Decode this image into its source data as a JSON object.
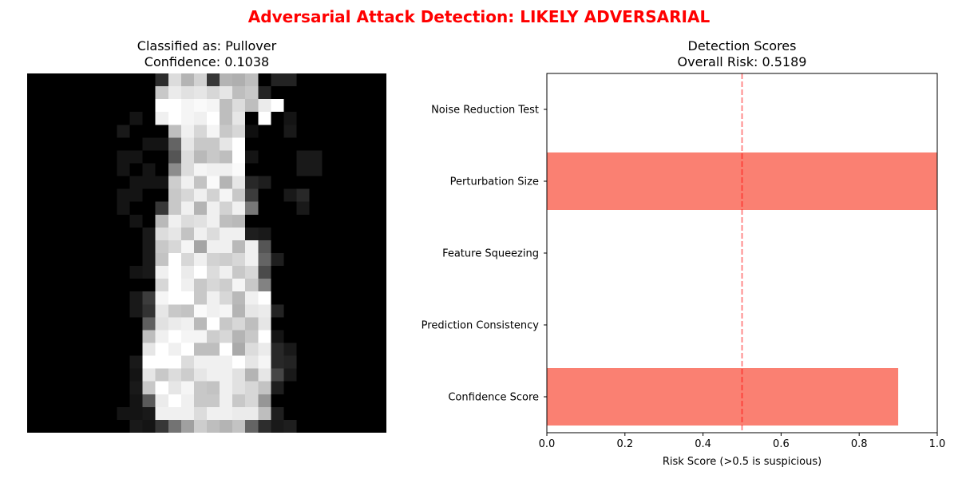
{
  "figure": {
    "suptitle": "Adversarial Attack Detection: LIKELY ADVERSARIAL",
    "suptitle_color": "#ff0000"
  },
  "image_panel": {
    "title_line1": "Classified as: Pullover",
    "title_line2": "Confidence: 0.1038",
    "colormap": "gray",
    "pixel_grid_size": [
      28,
      28
    ],
    "pixels": [
      [
        0,
        0,
        0,
        0,
        0,
        0,
        0,
        0,
        0,
        0,
        45,
        220,
        180,
        210,
        55,
        180,
        175,
        190,
        0,
        35,
        35,
        0,
        0,
        0,
        0,
        0,
        0,
        0
      ],
      [
        0,
        0,
        0,
        0,
        0,
        0,
        0,
        0,
        0,
        0,
        200,
        235,
        225,
        230,
        215,
        230,
        190,
        200,
        35,
        0,
        0,
        0,
        0,
        0,
        0,
        0,
        0,
        0
      ],
      [
        0,
        0,
        0,
        0,
        0,
        0,
        0,
        0,
        0,
        0,
        255,
        255,
        245,
        250,
        245,
        190,
        220,
        190,
        235,
        255,
        0,
        0,
        0,
        0,
        0,
        0,
        0,
        0
      ],
      [
        0,
        0,
        0,
        0,
        0,
        0,
        0,
        0,
        20,
        0,
        240,
        255,
        245,
        240,
        255,
        190,
        230,
        0,
        255,
        0,
        20,
        0,
        0,
        0,
        0,
        0,
        0,
        0
      ],
      [
        0,
        0,
        0,
        0,
        0,
        0,
        0,
        25,
        0,
        0,
        0,
        190,
        240,
        215,
        245,
        200,
        215,
        15,
        0,
        0,
        25,
        0,
        0,
        0,
        0,
        0,
        0,
        0
      ],
      [
        0,
        0,
        0,
        0,
        0,
        0,
        0,
        0,
        0,
        20,
        20,
        100,
        230,
        200,
        200,
        230,
        255,
        0,
        0,
        0,
        0,
        0,
        0,
        0,
        0,
        0,
        0,
        0
      ],
      [
        0,
        0,
        0,
        0,
        0,
        0,
        0,
        20,
        20,
        0,
        0,
        85,
        220,
        185,
        200,
        190,
        255,
        20,
        0,
        0,
        0,
        25,
        25,
        0,
        0,
        0,
        0,
        0
      ],
      [
        0,
        0,
        0,
        0,
        0,
        0,
        0,
        20,
        0,
        20,
        0,
        140,
        220,
        245,
        240,
        240,
        250,
        0,
        0,
        0,
        0,
        25,
        25,
        0,
        0,
        0,
        0,
        0
      ],
      [
        0,
        0,
        0,
        0,
        0,
        0,
        0,
        0,
        20,
        20,
        20,
        205,
        240,
        195,
        250,
        180,
        230,
        40,
        30,
        0,
        0,
        0,
        0,
        0,
        0,
        0,
        0,
        0
      ],
      [
        0,
        0,
        0,
        0,
        0,
        0,
        0,
        20,
        20,
        0,
        0,
        200,
        215,
        240,
        210,
        245,
        200,
        60,
        0,
        0,
        25,
        40,
        0,
        0,
        0,
        0,
        0,
        0
      ],
      [
        0,
        0,
        0,
        0,
        0,
        0,
        0,
        20,
        0,
        0,
        55,
        200,
        240,
        180,
        240,
        210,
        240,
        120,
        0,
        0,
        0,
        25,
        0,
        0,
        0,
        0,
        0,
        0
      ],
      [
        0,
        0,
        0,
        0,
        0,
        0,
        0,
        0,
        20,
        0,
        185,
        240,
        220,
        225,
        240,
        190,
        185,
        0,
        0,
        0,
        0,
        0,
        0,
        0,
        0,
        0,
        0,
        0
      ],
      [
        0,
        0,
        0,
        0,
        0,
        0,
        0,
        0,
        0,
        25,
        220,
        230,
        195,
        240,
        220,
        240,
        240,
        30,
        25,
        0,
        0,
        0,
        0,
        0,
        0,
        0,
        0,
        0
      ],
      [
        0,
        0,
        0,
        0,
        0,
        0,
        0,
        0,
        0,
        25,
        200,
        215,
        245,
        165,
        240,
        240,
        185,
        240,
        85,
        0,
        0,
        0,
        0,
        0,
        0,
        0,
        0,
        0
      ],
      [
        0,
        0,
        0,
        0,
        0,
        0,
        0,
        0,
        0,
        25,
        195,
        255,
        215,
        240,
        210,
        205,
        215,
        240,
        100,
        30,
        0,
        0,
        0,
        0,
        0,
        0,
        0,
        0
      ],
      [
        0,
        0,
        0,
        0,
        0,
        0,
        0,
        0,
        20,
        25,
        240,
        255,
        235,
        255,
        220,
        240,
        200,
        215,
        75,
        0,
        0,
        0,
        0,
        0,
        0,
        0,
        0,
        0
      ],
      [
        0,
        0,
        0,
        0,
        0,
        0,
        0,
        0,
        0,
        0,
        215,
        255,
        240,
        200,
        215,
        205,
        245,
        200,
        130,
        0,
        0,
        0,
        0,
        0,
        0,
        0,
        0,
        0
      ],
      [
        0,
        0,
        0,
        0,
        0,
        0,
        0,
        0,
        25,
        60,
        245,
        255,
        255,
        200,
        240,
        215,
        185,
        240,
        255,
        0,
        0,
        0,
        0,
        0,
        0,
        0,
        0,
        0
      ],
      [
        0,
        0,
        0,
        0,
        0,
        0,
        0,
        0,
        25,
        50,
        230,
        200,
        195,
        250,
        240,
        245,
        180,
        230,
        235,
        35,
        0,
        0,
        0,
        0,
        0,
        0,
        0,
        0
      ],
      [
        0,
        0,
        0,
        0,
        0,
        0,
        0,
        0,
        0,
        95,
        225,
        235,
        240,
        185,
        255,
        200,
        215,
        190,
        230,
        0,
        0,
        0,
        0,
        0,
        0,
        0,
        0,
        0
      ],
      [
        0,
        0,
        0,
        0,
        0,
        0,
        0,
        0,
        0,
        190,
        240,
        255,
        245,
        245,
        205,
        215,
        180,
        200,
        255,
        20,
        0,
        0,
        0,
        0,
        0,
        0,
        0,
        0
      ],
      [
        0,
        0,
        0,
        0,
        0,
        0,
        0,
        0,
        0,
        230,
        255,
        240,
        255,
        190,
        190,
        255,
        170,
        220,
        235,
        40,
        25,
        0,
        0,
        0,
        0,
        0,
        0,
        0
      ],
      [
        0,
        0,
        0,
        0,
        0,
        0,
        0,
        0,
        25,
        255,
        255,
        255,
        220,
        240,
        240,
        240,
        255,
        230,
        245,
        40,
        35,
        0,
        0,
        0,
        0,
        0,
        0,
        0
      ],
      [
        0,
        0,
        0,
        0,
        0,
        0,
        0,
        0,
        20,
        230,
        200,
        220,
        205,
        230,
        240,
        240,
        225,
        180,
        230,
        70,
        25,
        0,
        0,
        0,
        0,
        0,
        0,
        0
      ],
      [
        0,
        0,
        0,
        0,
        0,
        0,
        0,
        0,
        25,
        200,
        255,
        230,
        245,
        200,
        195,
        240,
        225,
        215,
        195,
        30,
        0,
        0,
        0,
        0,
        0,
        0,
        0,
        0
      ],
      [
        0,
        0,
        0,
        0,
        0,
        0,
        0,
        0,
        20,
        90,
        235,
        255,
        240,
        200,
        200,
        240,
        200,
        215,
        150,
        0,
        0,
        0,
        0,
        0,
        0,
        0,
        0,
        0
      ],
      [
        0,
        0,
        0,
        0,
        0,
        0,
        0,
        20,
        20,
        25,
        240,
        240,
        240,
        220,
        240,
        240,
        235,
        235,
        190,
        30,
        0,
        0,
        0,
        0,
        0,
        0,
        0,
        0
      ],
      [
        0,
        0,
        0,
        0,
        0,
        0,
        0,
        0,
        25,
        20,
        55,
        115,
        160,
        205,
        190,
        180,
        195,
        100,
        45,
        25,
        30,
        0,
        0,
        0,
        0,
        0,
        0,
        0
      ]
    ]
  },
  "chart_data": {
    "type": "bar",
    "orientation": "horizontal",
    "title": "Detection Scores",
    "subtitle": "Overall Risk: 0.5189",
    "xlabel": "Risk Score (>0.5 is suspicious)",
    "ylabel": "",
    "xlim": [
      0.0,
      1.0
    ],
    "xticks": [
      0.0,
      0.2,
      0.4,
      0.6,
      0.8,
      1.0
    ],
    "xtick_labels": [
      "0.0",
      "0.2",
      "0.4",
      "0.6",
      "0.8",
      "1.0"
    ],
    "categories": [
      "Confidence Score",
      "Prediction Consistency",
      "Feature Squeezing",
      "Perturbation Size",
      "Noise Reduction Test"
    ],
    "values": [
      0.9,
      0.0,
      0.0,
      1.0,
      0.0
    ],
    "bar_color": "#fa8072",
    "threshold": {
      "value": 0.5,
      "color": "#ff0000",
      "style": "dashed"
    },
    "grid": false,
    "legend": "none"
  }
}
